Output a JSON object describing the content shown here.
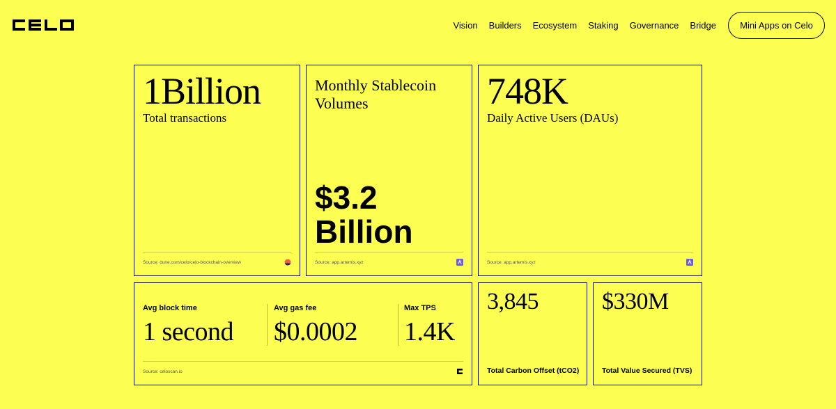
{
  "header": {
    "logo_text": "celo",
    "nav": [
      "Vision",
      "Builders",
      "Ecosystem",
      "Staking",
      "Governance",
      "Bridge"
    ],
    "cta": "Mini Apps on Celo"
  },
  "cards": {
    "transactions": {
      "value": "1Billion",
      "label": "Total transactions",
      "source": "Source: dune.com/celo/celo-blockchain-overview"
    },
    "stablecoin": {
      "title": "Monthly Stablecoin Volumes",
      "value_line1": "$3.2",
      "value_line2": "Billion",
      "source": "Source: app.artemis.xyz"
    },
    "dau": {
      "value": "748K",
      "label": "Daily Active Users (DAUs)",
      "source": "Source: app.artemis.xyz"
    },
    "network": {
      "stats": [
        {
          "label": "Avg block time",
          "value": "1 second"
        },
        {
          "label": "Avg gas fee",
          "value": "$0.0002"
        },
        {
          "label": "Max TPS",
          "value": "1.4K"
        }
      ],
      "source": "Source: celoscan.io"
    },
    "carbon": {
      "value": "3,845",
      "label": "Total Carbon Offset (tCO2)"
    },
    "tvs": {
      "value": "$330M",
      "label": "Total Value Secured (TVS)"
    }
  },
  "colors": {
    "background": "#FCFF52",
    "text": "#000000"
  }
}
